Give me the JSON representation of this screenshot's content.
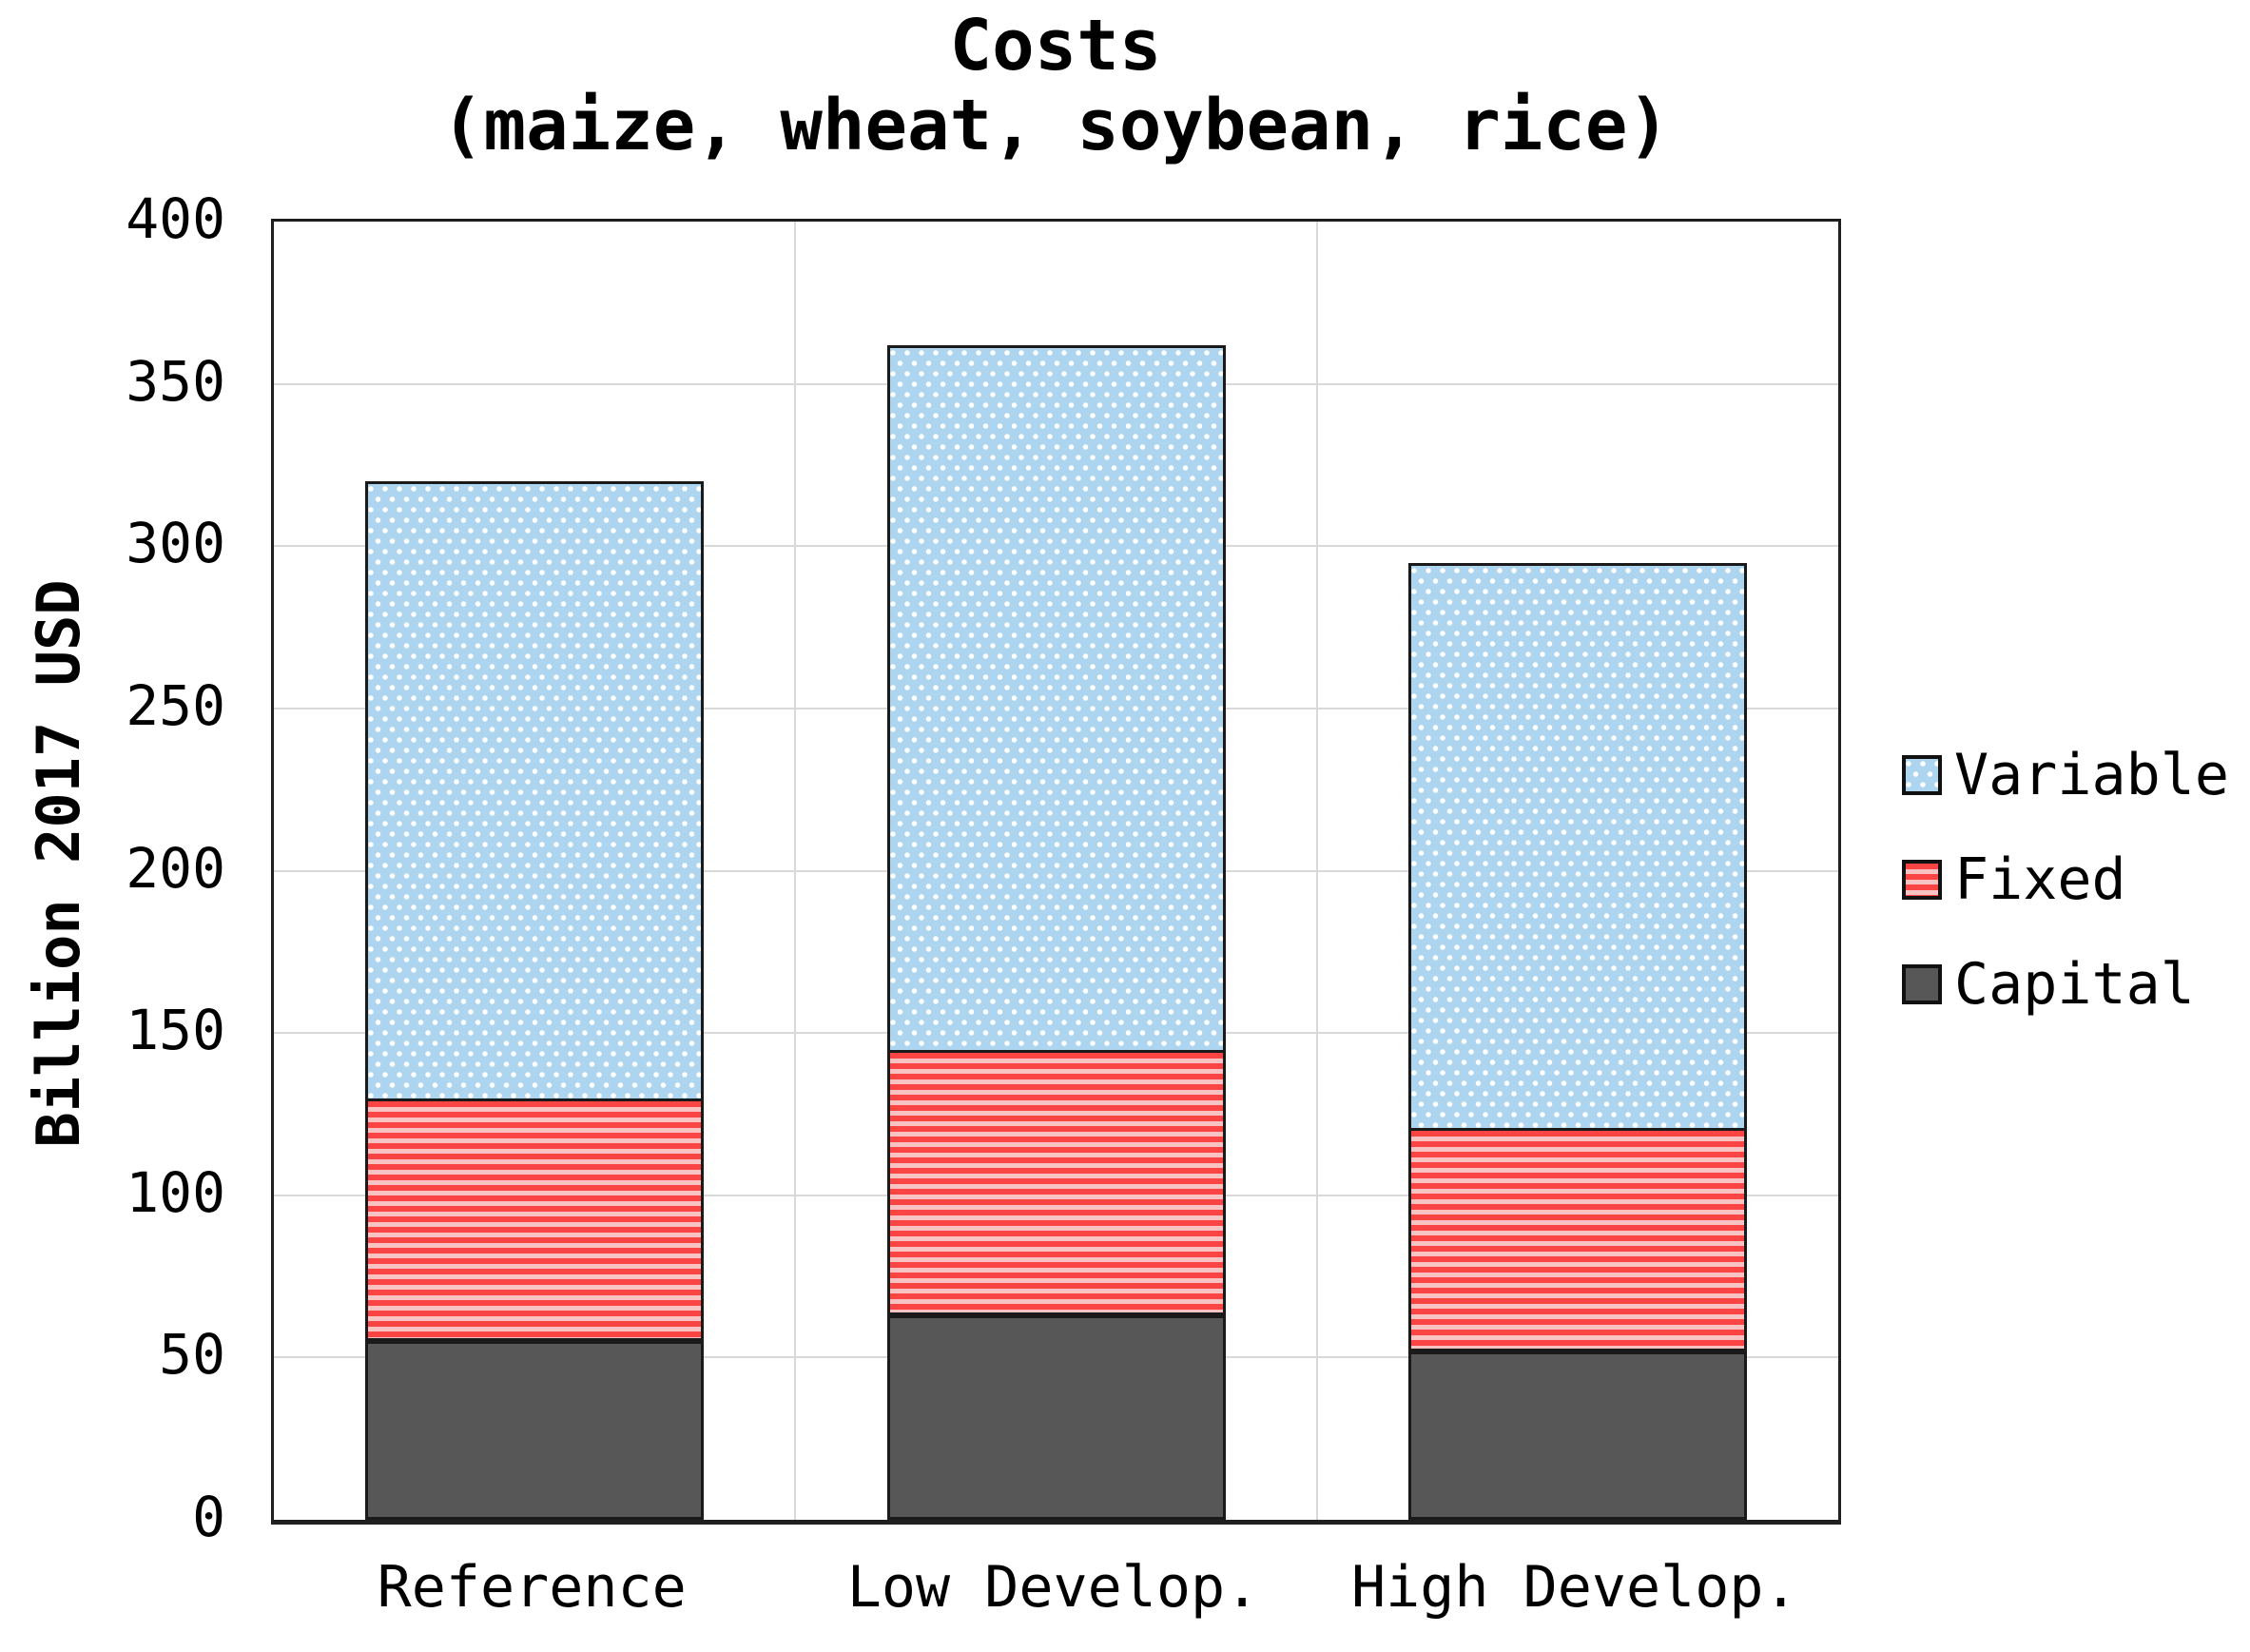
{
  "title": {
    "line1": "Costs",
    "line2": "(maize, wheat, soybean, rice)"
  },
  "y_axis": {
    "label": "Billion 2017 USD",
    "ticks": [
      "0",
      "50",
      "100",
      "150",
      "200",
      "250",
      "300",
      "350",
      "400"
    ]
  },
  "x_axis": {
    "categories": [
      "Reference",
      "Low Develop.",
      "High Develop."
    ]
  },
  "legend": {
    "items": [
      {
        "label": "Variable",
        "pattern": "dots"
      },
      {
        "label": "Fixed",
        "pattern": "hstripes"
      },
      {
        "label": "Capital",
        "pattern": "solid"
      }
    ]
  },
  "colors": {
    "variable_fill": "#aed5ef",
    "variable_dot": "#ffffff",
    "fixed_stripe": "#fb4444",
    "fixed_gap": "#f9c3c3",
    "capital_fill": "#575757",
    "gridline": "#d9d9d9",
    "border": "#1a1a1a"
  },
  "chart_data": {
    "type": "bar",
    "stacked": true,
    "title": "Costs (maize, wheat, soybean, rice)",
    "ylabel": "Billion 2017 USD",
    "ylim": [
      0,
      400
    ],
    "ytick_step": 50,
    "grid": true,
    "legend_position": "right",
    "categories": [
      "Reference",
      "Low Develop.",
      "High Develop."
    ],
    "series": [
      {
        "name": "Capital",
        "pattern": "solid",
        "values": [
          55,
          63,
          52
        ]
      },
      {
        "name": "Fixed",
        "pattern": "hstripes",
        "values": [
          74,
          81,
          68
        ]
      },
      {
        "name": "Variable",
        "pattern": "dots",
        "values": [
          190,
          217,
          174
        ]
      }
    ],
    "totals": [
      319,
      361,
      294
    ]
  }
}
